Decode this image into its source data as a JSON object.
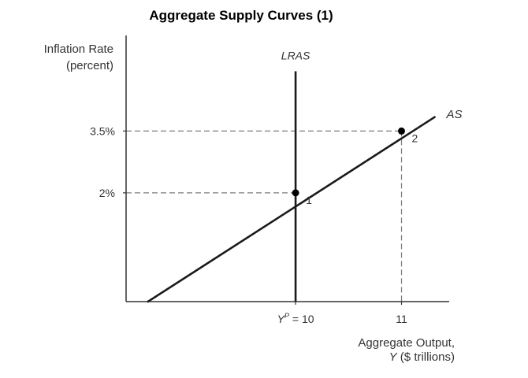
{
  "chart_data": {
    "type": "line",
    "title": "Aggregate Supply Curves (1)",
    "ylabel": [
      "Inflation Rate",
      "(percent)"
    ],
    "xlabel": [
      "Aggregate Output,",
      "Y ($ trillions)"
    ],
    "grid": false,
    "xlim": [
      8.4,
      11.45
    ],
    "ylim": [
      -0.64,
      5.82
    ],
    "y_ticks": [
      {
        "value": 3.5,
        "label": "3.5%"
      },
      {
        "value": 2,
        "label": "2%"
      }
    ],
    "x_ticks": [
      {
        "value": 10,
        "label_pre": "Y",
        "label_sup": "P",
        "label_post": " = 10"
      },
      {
        "value": 11,
        "label": "11"
      }
    ],
    "series": [
      {
        "name": "AS",
        "kind": "line",
        "points": [
          [
            8.6,
            -0.65
          ],
          [
            11.32,
            3.85
          ]
        ]
      },
      {
        "name": "LRAS",
        "kind": "vertical",
        "x": 10,
        "y_range": [
          -0.64,
          4.95
        ]
      }
    ],
    "points": [
      {
        "label": "1",
        "x": 10,
        "y": 2
      },
      {
        "label": "2",
        "x": 11,
        "y": 3.5
      }
    ],
    "colors": {
      "curve": "#1a1a1a",
      "dashed": "#7a7a7a",
      "axis": "#333333"
    }
  }
}
